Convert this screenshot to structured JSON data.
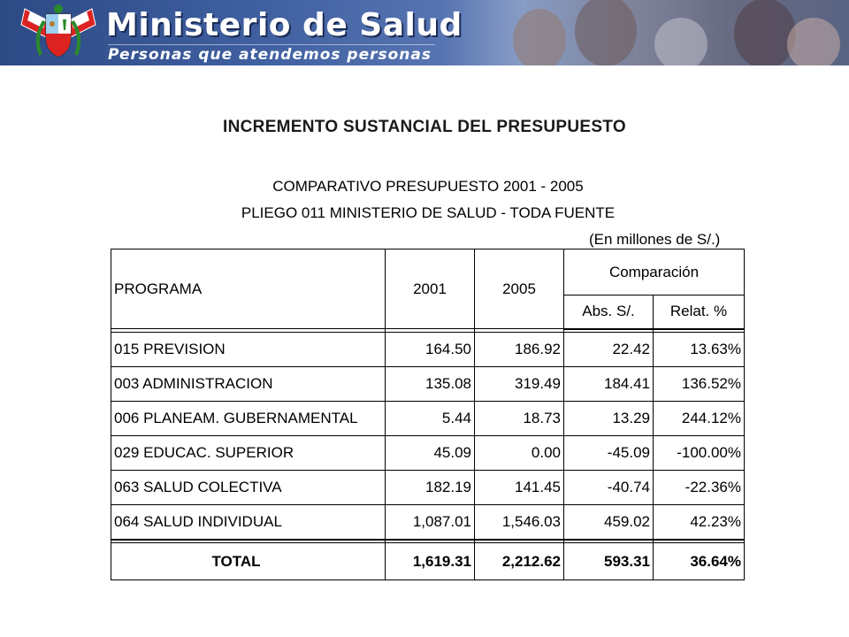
{
  "banner": {
    "title": "Ministerio de Salud",
    "subtitle": "Personas que atendemos personas"
  },
  "page": {
    "title": "INCREMENTO SUSTANCIAL DEL PRESUPUESTO",
    "subtitle_1": "COMPARATIVO PRESUPUESTO 2001 - 2005",
    "subtitle_2": "PLIEGO 011 MINISTERIO DE SALUD - TODA FUENTE",
    "unit_note": "(En millones de S/.)"
  },
  "table": {
    "headers": {
      "programa": "PROGRAMA",
      "y2001": "2001",
      "y2005": "2005",
      "comparacion": "Comparación",
      "abs": "Abs. S/.",
      "rel": "Relat. %"
    },
    "rows": [
      {
        "programa": "015 PREVISION",
        "y2001": "164.50",
        "y2005": "186.92",
        "abs": "22.42",
        "rel": "13.63%"
      },
      {
        "programa": "003 ADMINISTRACION",
        "y2001": "135.08",
        "y2005": "319.49",
        "abs": "184.41",
        "rel": "136.52%"
      },
      {
        "programa": "006 PLANEAM. GUBERNAMENTAL",
        "y2001": "5.44",
        "y2005": "18.73",
        "abs": "13.29",
        "rel": "244.12%"
      },
      {
        "programa": "029 EDUCAC. SUPERIOR",
        "y2001": "45.09",
        "y2005": "0.00",
        "abs": "-45.09",
        "rel": "-100.00%"
      },
      {
        "programa": "063 SALUD COLECTIVA",
        "y2001": "182.19",
        "y2005": "141.45",
        "abs": "-40.74",
        "rel": "-22.36%"
      },
      {
        "programa": "064 SALUD INDIVIDUAL",
        "y2001": "1,087.01",
        "y2005": "1,546.03",
        "abs": "459.02",
        "rel": "42.23%"
      }
    ],
    "total": {
      "programa": "TOTAL",
      "y2001": "1,619.31",
      "y2005": "2,212.62",
      "abs": "593.31",
      "rel": "36.64%"
    }
  }
}
